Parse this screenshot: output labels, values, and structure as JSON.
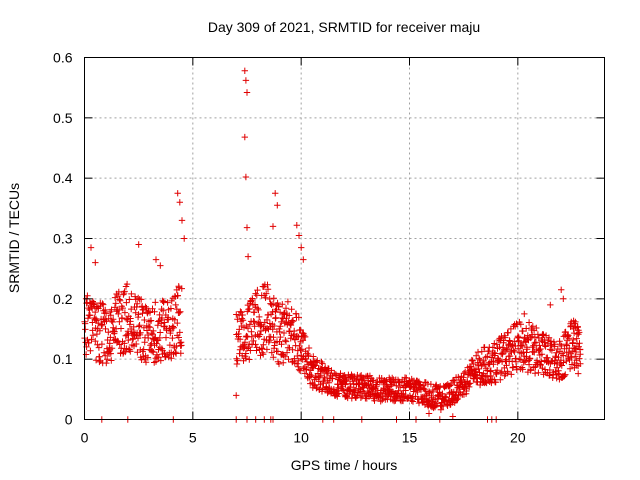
{
  "chart_data": {
    "type": "scatter",
    "title": "Day 309 of 2021, SRMTID for receiver maju",
    "xlabel": "GPS time / hours",
    "ylabel": "SRMTID / TECUs",
    "xlim": [
      0,
      24
    ],
    "ylim": [
      0,
      0.6
    ],
    "xticks": [
      0,
      5,
      10,
      15,
      20
    ],
    "yticks": [
      0,
      0.1,
      0.2,
      0.3,
      0.4,
      0.5,
      0.6
    ],
    "xtick_labels": [
      "0",
      "5",
      "10",
      "15",
      "20"
    ],
    "ytick_labels": [
      "0",
      "0.1",
      "0.2",
      "0.3",
      "0.4",
      "0.5",
      "0.6"
    ],
    "grid": true,
    "marker": "+",
    "color": "#e00000",
    "series": [
      {
        "name": "SRMTID",
        "trend": [
          [
            0.0,
            0.16
          ],
          [
            0.5,
            0.15
          ],
          [
            1.0,
            0.14
          ],
          [
            1.5,
            0.16
          ],
          [
            2.0,
            0.17
          ],
          [
            2.5,
            0.15
          ],
          [
            3.0,
            0.14
          ],
          [
            3.5,
            0.15
          ],
          [
            4.0,
            0.15
          ],
          [
            4.5,
            0.17
          ],
          [
            7.0,
            0.13
          ],
          [
            7.5,
            0.14
          ],
          [
            8.0,
            0.16
          ],
          [
            8.5,
            0.17
          ],
          [
            9.0,
            0.14
          ],
          [
            9.5,
            0.15
          ],
          [
            10.0,
            0.12
          ],
          [
            10.5,
            0.08
          ],
          [
            11.0,
            0.07
          ],
          [
            11.5,
            0.06
          ],
          [
            12.0,
            0.055
          ],
          [
            12.5,
            0.055
          ],
          [
            13.0,
            0.055
          ],
          [
            13.5,
            0.05
          ],
          [
            14.0,
            0.05
          ],
          [
            14.5,
            0.05
          ],
          [
            15.0,
            0.05
          ],
          [
            15.5,
            0.045
          ],
          [
            16.0,
            0.04
          ],
          [
            16.5,
            0.035
          ],
          [
            17.0,
            0.045
          ],
          [
            17.5,
            0.06
          ],
          [
            18.0,
            0.08
          ],
          [
            18.5,
            0.09
          ],
          [
            19.0,
            0.095
          ],
          [
            19.5,
            0.11
          ],
          [
            20.0,
            0.12
          ],
          [
            20.5,
            0.12
          ],
          [
            21.0,
            0.11
          ],
          [
            21.5,
            0.1
          ],
          [
            22.0,
            0.1
          ],
          [
            22.5,
            0.13
          ],
          [
            22.9,
            0.11
          ]
        ],
        "spikes": [
          [
            0.3,
            0.285
          ],
          [
            0.5,
            0.26
          ],
          [
            2.5,
            0.29
          ],
          [
            3.3,
            0.265
          ],
          [
            3.5,
            0.255
          ],
          [
            4.3,
            0.375
          ],
          [
            4.4,
            0.36
          ],
          [
            4.5,
            0.33
          ],
          [
            4.6,
            0.3
          ],
          [
            7.4,
            0.578
          ],
          [
            7.45,
            0.562
          ],
          [
            7.5,
            0.542
          ],
          [
            7.4,
            0.468
          ],
          [
            7.45,
            0.402
          ],
          [
            7.5,
            0.318
          ],
          [
            7.55,
            0.27
          ],
          [
            8.8,
            0.375
          ],
          [
            8.9,
            0.355
          ],
          [
            8.7,
            0.32
          ],
          [
            9.8,
            0.322
          ],
          [
            9.9,
            0.305
          ],
          [
            10.0,
            0.285
          ],
          [
            10.1,
            0.265
          ],
          [
            22.0,
            0.215
          ],
          [
            22.1,
            0.2
          ],
          [
            21.5,
            0.19
          ],
          [
            20.3,
            0.175
          ],
          [
            7.0,
            0.04
          ],
          [
            17.0,
            0.005
          ],
          [
            15.9,
            0.01
          ]
        ],
        "zeros": [
          0.8,
          2.0,
          4.1,
          7.0,
          7.5,
          7.9,
          8.3,
          8.6,
          8.7,
          11.0,
          11.5,
          12.8,
          14.4,
          15.3,
          16.4,
          18.6,
          18.8,
          19.0
        ]
      }
    ]
  }
}
